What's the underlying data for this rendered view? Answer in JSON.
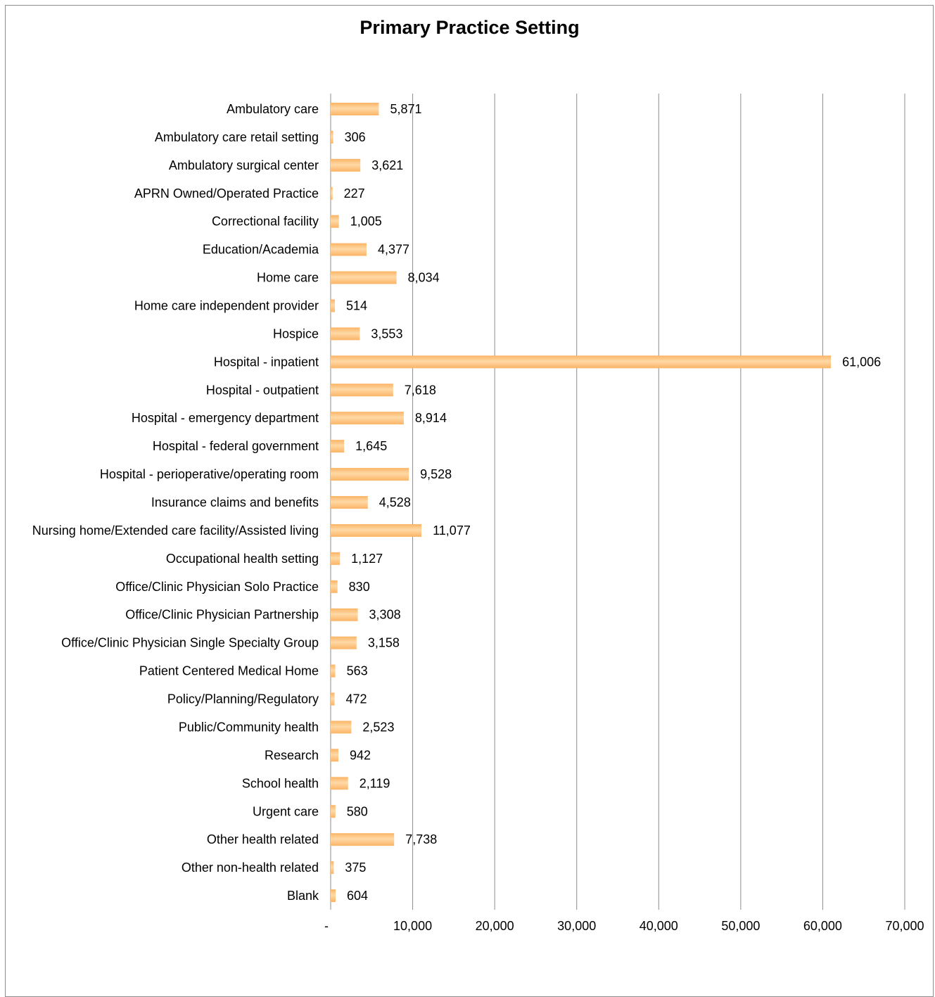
{
  "chart_data": {
    "type": "bar",
    "orientation": "horizontal",
    "title": "Primary Practice Setting",
    "xlabel": "",
    "ylabel": "",
    "xlim": [
      0,
      70000
    ],
    "x_ticks": [
      0,
      10000,
      20000,
      30000,
      40000,
      50000,
      60000,
      70000
    ],
    "x_tick_labels": [
      "-",
      "10,000",
      "20,000",
      "30,000",
      "40,000",
      "50,000",
      "60,000",
      "70,000"
    ],
    "grid": "vertical major gridlines",
    "legend": "none",
    "bar_color": "#fbb466",
    "bar_highlight": "#ffd9a6",
    "grid_color": "#8c8c8c",
    "categories": [
      "Ambulatory care",
      "Ambulatory care retail setting",
      "Ambulatory surgical center",
      "APRN Owned/Operated Practice",
      "Correctional facility",
      "Education/Academia",
      "Home care",
      "Home care independent provider",
      "Hospice",
      "Hospital - inpatient",
      "Hospital - outpatient",
      "Hospital - emergency department",
      "Hospital - federal government",
      "Hospital - perioperative/operating room",
      "Insurance claims and benefits",
      "Nursing home/Extended care facility/Assisted living",
      "Occupational health setting",
      "Office/Clinic Physician Solo Practice",
      "Office/Clinic Physician Partnership",
      "Office/Clinic Physician Single Specialty Group",
      "Patient Centered Medical Home",
      "Policy/Planning/Regulatory",
      "Public/Community health",
      "Research",
      "School health",
      "Urgent care",
      "Other health related",
      "Other non-health related",
      "Blank"
    ],
    "values": [
      5871,
      306,
      3621,
      227,
      1005,
      4377,
      8034,
      514,
      3553,
      61006,
      7618,
      8914,
      1645,
      9528,
      4528,
      11077,
      1127,
      830,
      3308,
      3158,
      563,
      472,
      2523,
      942,
      2119,
      580,
      7738,
      375,
      604
    ],
    "value_labels": [
      "5,871",
      "306",
      "3,621",
      "227",
      "1,005",
      "4,377",
      "8,034",
      "514",
      "3,553",
      "61,006",
      "7,618",
      "8,914",
      "1,645",
      "9,528",
      "4,528",
      "11,077",
      "1,127",
      "830",
      "3,308",
      "3,158",
      "563",
      "472",
      "2,523",
      "942",
      "2,119",
      "580",
      "7,738",
      "375",
      "604"
    ]
  }
}
